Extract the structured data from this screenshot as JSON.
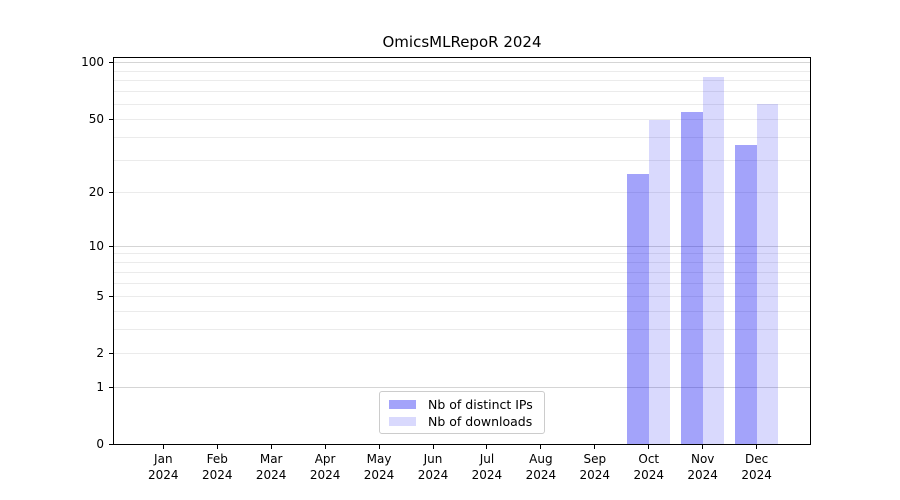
{
  "chart_data": {
    "type": "bar",
    "title": "OmicsMLRepoR 2024",
    "categories": [
      "Jan",
      "Feb",
      "Mar",
      "Apr",
      "May",
      "Jun",
      "Jul",
      "Aug",
      "Sep",
      "Oct",
      "Nov",
      "Dec"
    ],
    "x_year_label": "2024",
    "series": [
      {
        "name": "Nb of distinct IPs",
        "color": "rgba(0,0,240,0.36)",
        "solid_hex": "#a3a3fa",
        "values": [
          null,
          null,
          null,
          null,
          null,
          null,
          null,
          null,
          null,
          25,
          54,
          36
        ]
      },
      {
        "name": "Nb of downloads",
        "color": "rgba(0,0,240,0.15)",
        "solid_hex": "#d9d9fd",
        "values": [
          null,
          null,
          null,
          null,
          null,
          null,
          null,
          null,
          null,
          49,
          83,
          60
        ]
      }
    ],
    "yscale": "log1p",
    "y_ticks": [
      0,
      1,
      2,
      5,
      10,
      20,
      50,
      100
    ],
    "ylim": [
      0,
      105.1
    ],
    "grid": {
      "minor_values": [
        2,
        3,
        4,
        5,
        6,
        7,
        8,
        9,
        20,
        30,
        40,
        50,
        60,
        70,
        80,
        90
      ],
      "major_values": [
        1,
        10,
        100
      ]
    },
    "legend_position": "lower-center-inside",
    "frame_color": "#000000",
    "background_color": "#ffffff"
  }
}
